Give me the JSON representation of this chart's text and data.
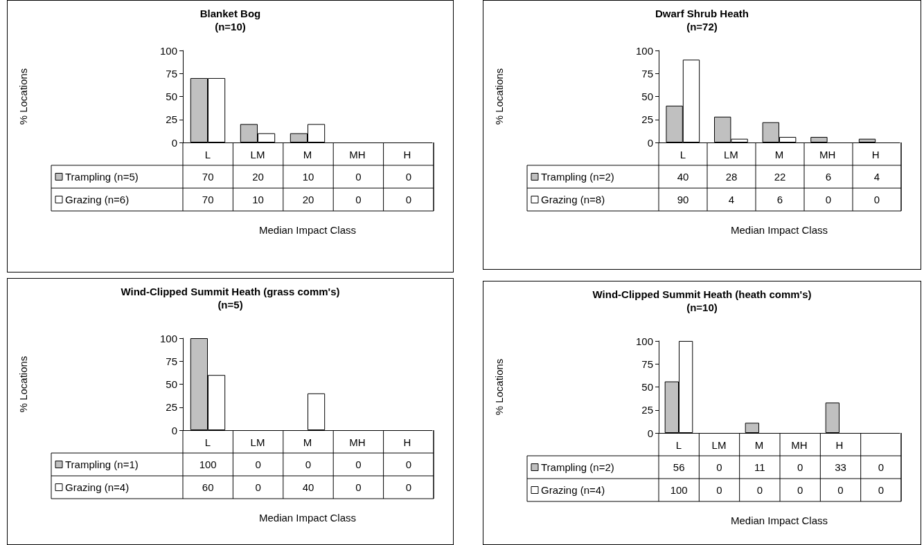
{
  "chart_data": [
    {
      "type": "bar",
      "title": "Blanket Bog",
      "subtitle": "(n=10)",
      "xlabel": "Median Impact Class",
      "ylabel": "% Locations",
      "categories": [
        "L",
        "LM",
        "M",
        "MH",
        "H"
      ],
      "series": [
        {
          "name": "Trampling (n=5)",
          "color": "#c0c0c0",
          "values": [
            70,
            20,
            10,
            0,
            0
          ]
        },
        {
          "name": "Grazing (n=6)",
          "color": "#ffffff",
          "values": [
            70,
            10,
            20,
            0,
            0
          ]
        }
      ],
      "ylim": [
        0,
        100
      ],
      "yticks": [
        0,
        25,
        50,
        75,
        100
      ],
      "grid": false,
      "legend": "bottom left",
      "data_labels": true
    },
    {
      "type": "bar",
      "title": "Dwarf Shrub Heath",
      "subtitle": "(n=72)",
      "xlabel": "Median Impact Class",
      "ylabel": "% Locations",
      "categories": [
        "L",
        "LM",
        "M",
        "MH",
        "H"
      ],
      "series": [
        {
          "name": "Trampling (n=2)",
          "color": "#c0c0c0",
          "values": [
            40,
            28,
            22,
            6,
            4
          ]
        },
        {
          "name": "Grazing (n=8)",
          "color": "#ffffff",
          "values": [
            90,
            4,
            6,
            0,
            0
          ]
        }
      ],
      "ylim": [
        0,
        100
      ],
      "yticks": [
        0,
        25,
        50,
        75,
        100
      ],
      "grid": false,
      "legend": "bottom left",
      "data_labels": true
    },
    {
      "type": "bar",
      "title": "Wind-Clipped Summit Heath (grass comm's)",
      "subtitle": "(n=5)",
      "xlabel": "Median Impact Class",
      "ylabel": "% Locations",
      "categories": [
        "L",
        "LM",
        "M",
        "MH",
        "H"
      ],
      "series": [
        {
          "name": "Trampling (n=1)",
          "color": "#c0c0c0",
          "values": [
            100,
            0,
            0,
            0,
            0
          ]
        },
        {
          "name": "Grazing (n=4)",
          "color": "#ffffff",
          "values": [
            60,
            0,
            40,
            0,
            0
          ]
        }
      ],
      "ylim": [
        0,
        100
      ],
      "yticks": [
        0,
        25,
        50,
        75,
        100
      ],
      "grid": false,
      "legend": "bottom left",
      "data_labels": true
    },
    {
      "type": "bar",
      "title": "Wind-Clipped Summit Heath (heath comm's)",
      "subtitle": "(n=10)",
      "xlabel": "Median Impact Class",
      "ylabel": "% Locations",
      "categories": [
        "L",
        "LM",
        "M",
        "MH",
        "H",
        null
      ],
      "series": [
        {
          "name": "Trampling (n=2)",
          "color": "#c0c0c0",
          "values": [
            56,
            0,
            11,
            0,
            33,
            0
          ]
        },
        {
          "name": "Grazing (n=4)",
          "color": "#ffffff",
          "values": [
            100,
            0,
            0,
            0,
            0,
            0
          ]
        }
      ],
      "ylim": [
        0,
        100
      ],
      "yticks": [
        0,
        25,
        50,
        75,
        100
      ],
      "grid": false,
      "legend": "bottom left",
      "data_labels": true
    }
  ]
}
